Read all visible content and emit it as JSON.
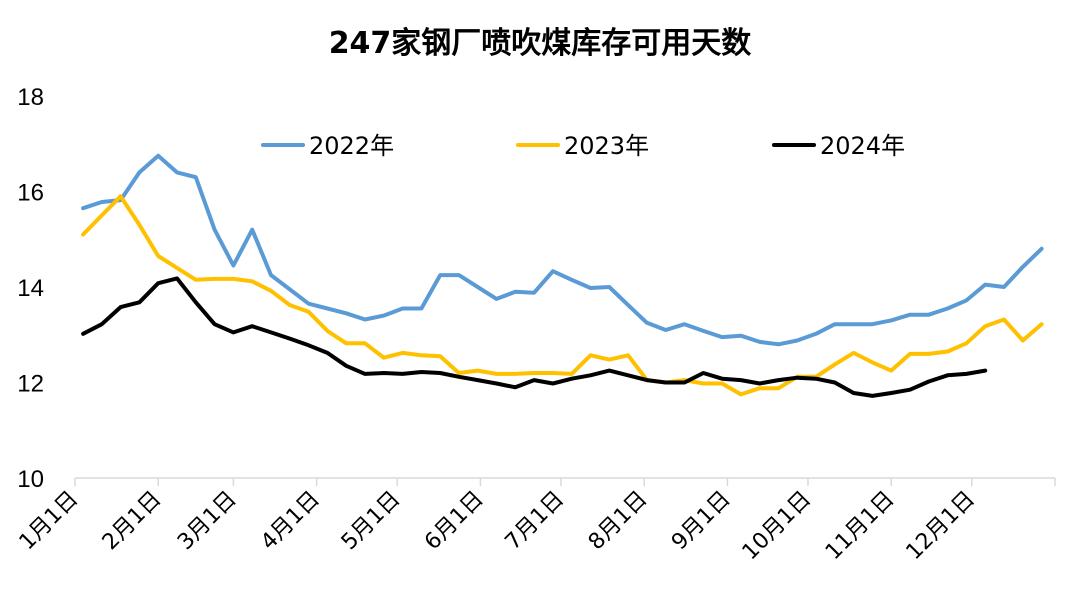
{
  "chart_data": {
    "type": "line",
    "title": "247家钢厂喷吹煤库存可用天数",
    "xlabel": "",
    "ylabel": "",
    "ylim": [
      10,
      18
    ],
    "yticks": [
      "10",
      "12",
      "14",
      "16",
      "18"
    ],
    "xticks": [
      "1月1日",
      "2月1日",
      "3月1日",
      "4月1日",
      "5月1日",
      "6月1日",
      "7月1日",
      "8月1日",
      "9月1日",
      "10月1日",
      "11月1日",
      "12月1日"
    ],
    "grid": false,
    "legend_position": "top-center",
    "series": [
      {
        "name": "2022年",
        "color": "#5B9BD5",
        "x": [
          4,
          11,
          18,
          25,
          32,
          39,
          46,
          53,
          60,
          67,
          74,
          81,
          88,
          95,
          102,
          109,
          116,
          123,
          130,
          137,
          144,
          151,
          158,
          165,
          172,
          179,
          186,
          193,
          200,
          207,
          214,
          221,
          228,
          235,
          242,
          249,
          256,
          263,
          270,
          277,
          284,
          291,
          298,
          305,
          312,
          319,
          326,
          333,
          340,
          347,
          354,
          361
        ],
        "values": [
          15.65,
          15.78,
          15.82,
          16.4,
          16.75,
          16.4,
          16.3,
          15.2,
          14.45,
          15.2,
          14.25,
          13.95,
          13.65,
          13.55,
          13.45,
          13.32,
          13.4,
          13.55,
          13.55,
          14.25,
          14.25,
          14.0,
          13.75,
          13.9,
          13.88,
          14.33,
          14.15,
          13.98,
          14.0,
          13.62,
          13.25,
          13.1,
          13.22,
          13.08,
          12.95,
          12.98,
          12.85,
          12.8,
          12.88,
          13.02,
          13.22,
          13.22,
          13.22,
          13.3,
          13.42,
          13.42,
          13.55,
          13.72,
          14.05,
          14.0,
          14.42,
          14.8
        ]
      },
      {
        "name": "2023年",
        "color": "#FFC000",
        "x": [
          4,
          11,
          18,
          25,
          32,
          39,
          46,
          53,
          60,
          67,
          74,
          81,
          88,
          95,
          102,
          109,
          116,
          123,
          130,
          137,
          144,
          151,
          158,
          165,
          172,
          179,
          186,
          193,
          200,
          207,
          214,
          221,
          228,
          235,
          242,
          249,
          256,
          263,
          270,
          277,
          284,
          291,
          298,
          305,
          312,
          319,
          326,
          333,
          340,
          347,
          354,
          361
        ],
        "values": [
          15.1,
          15.5,
          15.9,
          15.3,
          14.65,
          14.4,
          14.15,
          14.17,
          14.17,
          14.12,
          13.92,
          13.62,
          13.48,
          13.08,
          12.82,
          12.82,
          12.52,
          12.62,
          12.57,
          12.55,
          12.2,
          12.25,
          12.18,
          12.18,
          12.2,
          12.2,
          12.18,
          12.57,
          12.48,
          12.57,
          12.05,
          12.0,
          12.05,
          11.98,
          11.98,
          11.75,
          11.88,
          11.88,
          12.12,
          12.12,
          12.38,
          12.62,
          12.42,
          12.25,
          12.6,
          12.6,
          12.65,
          12.82,
          13.18,
          13.32,
          12.88,
          13.22
        ]
      },
      {
        "name": "2024年",
        "color": "#000000",
        "x": [
          4,
          11,
          18,
          25,
          32,
          39,
          46,
          53,
          60,
          67,
          74,
          81,
          88,
          95,
          102,
          109,
          116,
          123,
          130,
          137,
          144,
          151,
          158,
          165,
          172,
          179,
          186,
          193,
          200,
          207,
          214,
          221,
          228,
          235,
          242,
          249,
          256,
          263,
          270,
          277,
          284,
          291,
          298,
          305,
          312,
          319,
          326,
          333,
          340
        ],
        "values": [
          13.02,
          13.22,
          13.58,
          13.68,
          14.08,
          14.18,
          13.68,
          13.22,
          13.05,
          13.18,
          13.05,
          12.92,
          12.78,
          12.62,
          12.35,
          12.18,
          12.2,
          12.18,
          12.22,
          12.2,
          12.12,
          12.05,
          11.98,
          11.9,
          12.05,
          11.98,
          12.08,
          12.15,
          12.25,
          12.15,
          12.05,
          12.0,
          12.0,
          12.2,
          12.08,
          12.05,
          11.98,
          12.05,
          12.1,
          12.08,
          12.0,
          11.78,
          11.72,
          11.78,
          11.85,
          12.02,
          12.15,
          12.18,
          12.25
        ]
      }
    ]
  }
}
